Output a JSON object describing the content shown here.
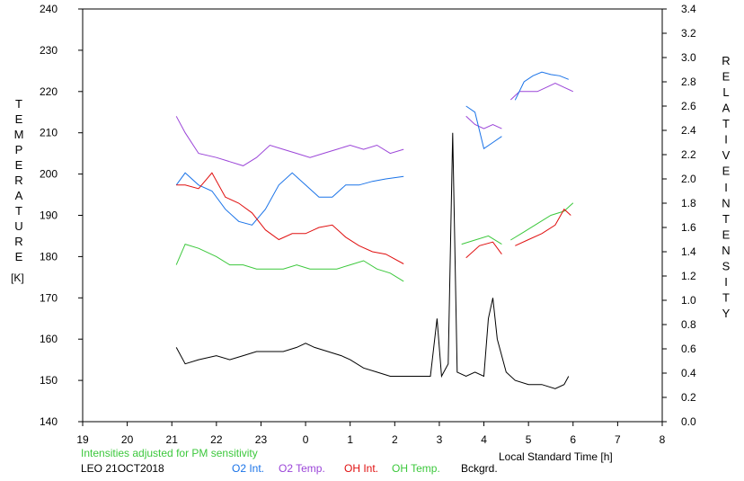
{
  "chart_data": {
    "type": "line",
    "left_axis": {
      "label_letters": [
        "T",
        "E",
        "M",
        "P",
        "E",
        "R",
        "A",
        "T",
        "U",
        "R",
        "E"
      ],
      "unit": "[K]",
      "ticks": [
        "240",
        "230",
        "220",
        "210",
        "200",
        "190",
        "180",
        "170",
        "160",
        "150",
        "140"
      ],
      "ylim": [
        140,
        240
      ]
    },
    "right_axis": {
      "label_word1_letters": [
        "R",
        "E",
        "L",
        "A",
        "T",
        "I",
        "V",
        "E"
      ],
      "label_word2_letters": [
        "I",
        "N",
        "T",
        "E",
        "N",
        "S",
        "I",
        "T",
        "Y"
      ],
      "ticks": [
        "3.4",
        "3.2",
        "3.0",
        "2.8",
        "2.6",
        "2.4",
        "2.2",
        "2.0",
        "1.8",
        "1.6",
        "1.4",
        "1.2",
        "1.0",
        "0.8",
        "0.6",
        "0.4",
        "0.2",
        "0.0"
      ],
      "ylim": [
        0.0,
        3.4
      ]
    },
    "x_axis": {
      "ticks": [
        "19",
        "20",
        "21",
        "22",
        "23",
        "0",
        "1",
        "2",
        "3",
        "4",
        "5",
        "6",
        "7",
        "8"
      ],
      "xlabel": "Local Standard Time [h]",
      "range_hours_since_19": [
        0,
        13
      ]
    },
    "note": "Intensities adjusted for PM sensitivity",
    "station_label": "LEO 21OCT2018",
    "legend": [
      {
        "name": "O2 Int.",
        "color": "#1a73e8"
      },
      {
        "name": "O2 Temp.",
        "color": "#9b45d8"
      },
      {
        "name": "OH Int.",
        "color": "#e01010"
      },
      {
        "name": "OH Temp.",
        "color": "#3cc83c"
      },
      {
        "name": "Bckgrd.",
        "color": "#000000"
      }
    ],
    "series": [
      {
        "name": "O2 Temp.",
        "axis": "left",
        "segments": [
          [
            [
              2.1,
              214
            ],
            [
              2.3,
              210
            ],
            [
              2.6,
              205
            ],
            [
              3.0,
              204
            ],
            [
              3.3,
              203
            ],
            [
              3.6,
              202
            ],
            [
              3.9,
              204
            ],
            [
              4.2,
              207
            ],
            [
              4.5,
              206
            ],
            [
              4.8,
              205
            ],
            [
              5.1,
              204
            ],
            [
              5.4,
              205
            ],
            [
              5.7,
              206
            ],
            [
              6.0,
              207
            ],
            [
              6.3,
              206
            ],
            [
              6.6,
              207
            ],
            [
              6.9,
              205
            ],
            [
              7.2,
              206
            ]
          ],
          [
            [
              8.6,
              214
            ],
            [
              8.8,
              212
            ],
            [
              9.0,
              211
            ],
            [
              9.2,
              212
            ],
            [
              9.4,
              211
            ]
          ],
          [
            [
              9.6,
              218
            ],
            [
              9.8,
              220
            ],
            [
              10.0,
              220
            ],
            [
              10.2,
              220
            ],
            [
              10.4,
              221
            ],
            [
              10.6,
              222
            ],
            [
              10.8,
              221
            ],
            [
              11.0,
              220
            ]
          ]
        ]
      },
      {
        "name": "OH Temp.",
        "axis": "left",
        "segments": [
          [
            [
              2.1,
              178
            ],
            [
              2.3,
              183
            ],
            [
              2.6,
              182
            ],
            [
              3.0,
              180
            ],
            [
              3.3,
              178
            ],
            [
              3.6,
              178
            ],
            [
              3.9,
              177
            ],
            [
              4.2,
              177
            ],
            [
              4.5,
              177
            ],
            [
              4.8,
              178
            ],
            [
              5.1,
              177
            ],
            [
              5.4,
              177
            ],
            [
              5.7,
              177
            ],
            [
              6.0,
              178
            ],
            [
              6.3,
              179
            ],
            [
              6.6,
              177
            ],
            [
              6.9,
              176
            ],
            [
              7.2,
              174
            ]
          ],
          [
            [
              8.5,
              183
            ],
            [
              8.8,
              184
            ],
            [
              9.1,
              185
            ],
            [
              9.4,
              183
            ]
          ],
          [
            [
              9.6,
              184
            ],
            [
              9.9,
              186
            ],
            [
              10.2,
              188
            ],
            [
              10.5,
              190
            ],
            [
              10.8,
              191
            ],
            [
              11.0,
              193
            ]
          ]
        ]
      },
      {
        "name": "O2 Int.",
        "axis": "right",
        "segments": [
          [
            [
              2.1,
              1.95
            ],
            [
              2.3,
              2.05
            ],
            [
              2.6,
              1.95
            ],
            [
              2.9,
              1.9
            ],
            [
              3.2,
              1.75
            ],
            [
              3.5,
              1.65
            ],
            [
              3.8,
              1.62
            ],
            [
              4.1,
              1.75
            ],
            [
              4.4,
              1.95
            ],
            [
              4.7,
              2.05
            ],
            [
              5.0,
              1.95
            ],
            [
              5.3,
              1.85
            ],
            [
              5.6,
              1.85
            ],
            [
              5.9,
              1.95
            ],
            [
              6.2,
              1.95
            ],
            [
              6.5,
              1.98
            ],
            [
              6.8,
              2.0
            ],
            [
              7.2,
              2.02
            ]
          ],
          [
            [
              8.6,
              2.6
            ],
            [
              8.8,
              2.55
            ],
            [
              9.0,
              2.25
            ],
            [
              9.2,
              2.3
            ],
            [
              9.4,
              2.35
            ]
          ],
          [
            [
              9.7,
              2.65
            ],
            [
              9.9,
              2.8
            ],
            [
              10.1,
              2.85
            ],
            [
              10.3,
              2.88
            ],
            [
              10.5,
              2.86
            ],
            [
              10.7,
              2.85
            ],
            [
              10.9,
              2.82
            ]
          ]
        ]
      },
      {
        "name": "OH Int.",
        "axis": "right",
        "segments": [
          [
            [
              2.1,
              1.95
            ],
            [
              2.3,
              1.95
            ],
            [
              2.6,
              1.92
            ],
            [
              2.9,
              2.05
            ],
            [
              3.2,
              1.85
            ],
            [
              3.5,
              1.8
            ],
            [
              3.8,
              1.72
            ],
            [
              4.1,
              1.58
            ],
            [
              4.4,
              1.5
            ],
            [
              4.7,
              1.55
            ],
            [
              5.0,
              1.55
            ],
            [
              5.3,
              1.6
            ],
            [
              5.6,
              1.62
            ],
            [
              5.9,
              1.52
            ],
            [
              6.2,
              1.45
            ],
            [
              6.5,
              1.4
            ],
            [
              6.8,
              1.38
            ],
            [
              7.2,
              1.3
            ]
          ],
          [
            [
              8.6,
              1.35
            ],
            [
              8.9,
              1.45
            ],
            [
              9.2,
              1.48
            ],
            [
              9.4,
              1.38
            ]
          ],
          [
            [
              9.7,
              1.45
            ],
            [
              10.0,
              1.5
            ],
            [
              10.3,
              1.55
            ],
            [
              10.6,
              1.62
            ],
            [
              10.8,
              1.75
            ],
            [
              10.95,
              1.7
            ]
          ]
        ]
      },
      {
        "name": "Bckgrd.",
        "axis": "left",
        "segments": [
          [
            [
              2.1,
              158
            ],
            [
              2.3,
              154
            ],
            [
              2.6,
              155
            ],
            [
              3.0,
              156
            ],
            [
              3.3,
              155
            ],
            [
              3.6,
              156
            ],
            [
              3.9,
              157
            ],
            [
              4.2,
              157
            ],
            [
              4.5,
              157
            ],
            [
              4.8,
              158
            ],
            [
              5.0,
              159
            ],
            [
              5.2,
              158
            ],
            [
              5.5,
              157
            ],
            [
              5.8,
              156
            ],
            [
              6.0,
              155
            ],
            [
              6.3,
              153
            ],
            [
              6.6,
              152
            ],
            [
              6.9,
              151
            ],
            [
              7.2,
              151
            ],
            [
              7.5,
              151
            ],
            [
              7.8,
              151
            ],
            [
              7.95,
              165
            ],
            [
              8.05,
              151
            ],
            [
              8.2,
              154
            ],
            [
              8.3,
              210
            ],
            [
              8.4,
              152
            ],
            [
              8.6,
              151
            ],
            [
              8.8,
              152
            ],
            [
              9.0,
              151
            ],
            [
              9.1,
              165
            ],
            [
              9.2,
              170
            ],
            [
              9.3,
              160
            ],
            [
              9.5,
              152
            ],
            [
              9.7,
              150
            ],
            [
              10.0,
              149
            ],
            [
              10.3,
              149
            ],
            [
              10.6,
              148
            ],
            [
              10.8,
              149
            ],
            [
              10.9,
              151
            ]
          ]
        ]
      }
    ]
  }
}
